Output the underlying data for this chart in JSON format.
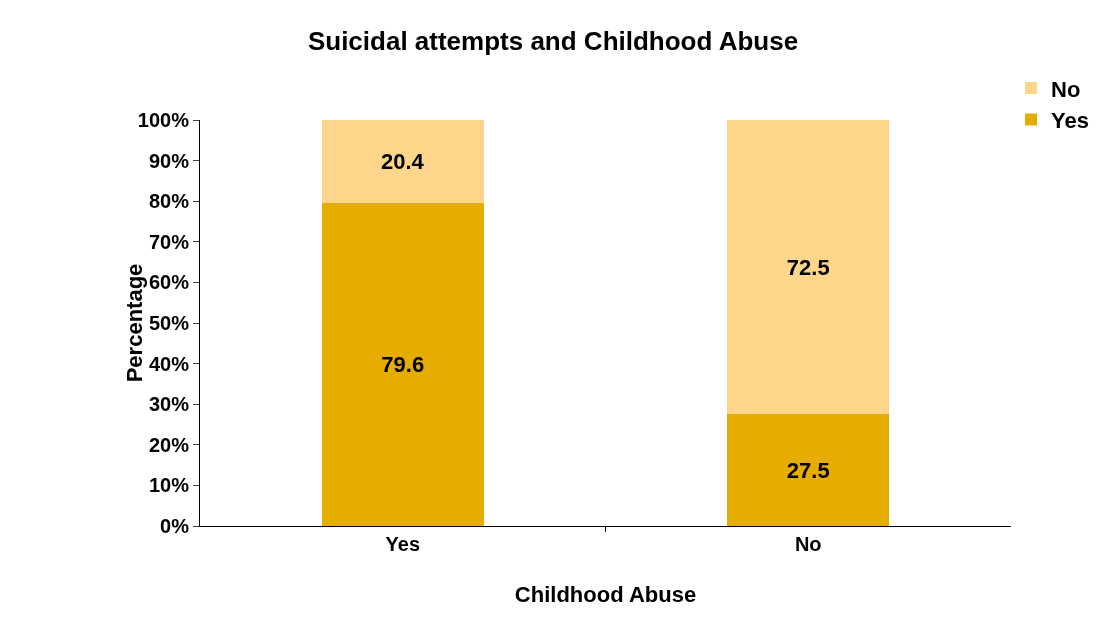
{
  "chart_data": {
    "type": "bar",
    "title": "Suicidal attempts and Childhood Abuse",
    "xlabel": "Childhood Abuse",
    "ylabel": "Percentage",
    "categories": [
      "Yes",
      "No"
    ],
    "series": [
      {
        "name": "Yes",
        "color": "#e6ac00",
        "values": [
          79.6,
          27.5
        ]
      },
      {
        "name": "No",
        "color": "#fdd68b",
        "values": [
          20.4,
          72.5
        ]
      }
    ],
    "stacked": true,
    "data_labels": true,
    "legend": "top right",
    "grid": false,
    "ylim": [
      0,
      100
    ],
    "yticks": [
      {
        "value": 0,
        "label": "0%"
      },
      {
        "value": 10,
        "label": "10%"
      },
      {
        "value": 20,
        "label": "20%"
      },
      {
        "value": 30,
        "label": "30%"
      },
      {
        "value": 40,
        "label": "40%"
      },
      {
        "value": 50,
        "label": "50%"
      },
      {
        "value": 60,
        "label": "60%"
      },
      {
        "value": 70,
        "label": "70%"
      },
      {
        "value": 80,
        "label": "80%"
      },
      {
        "value": 90,
        "label": "90%"
      },
      {
        "value": 100,
        "label": "100%"
      }
    ]
  }
}
